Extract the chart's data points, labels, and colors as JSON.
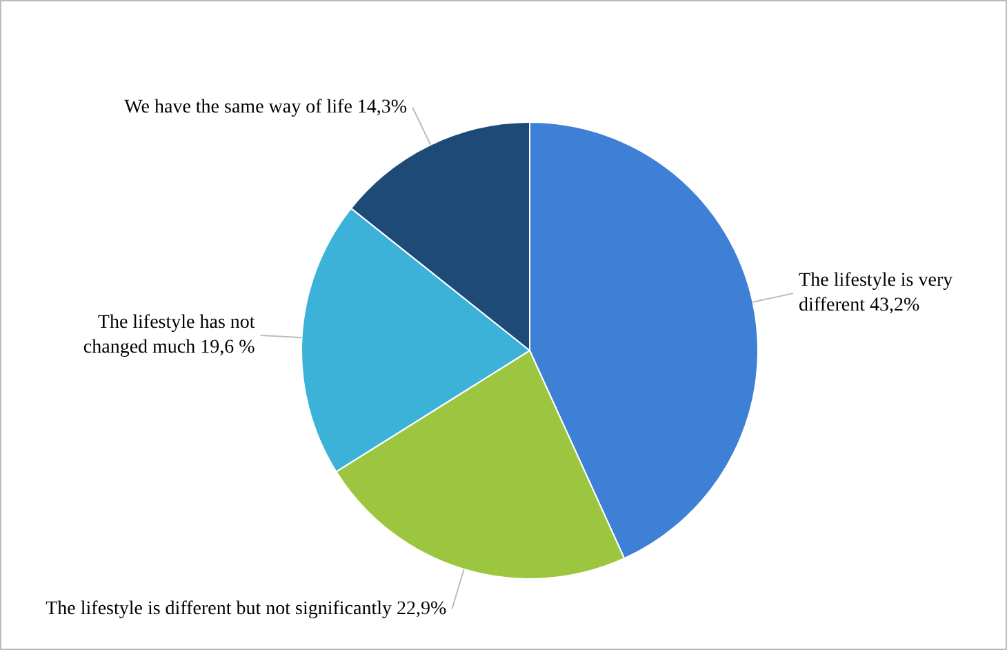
{
  "chart_data": {
    "type": "pie",
    "categories": [
      "The lifestyle is very different",
      "The lifestyle is different but not significantly",
      "The lifestyle has not changed much",
      "We have the same way of life"
    ],
    "values": [
      43.2,
      22.9,
      19.6,
      14.3
    ],
    "value_labels": [
      "43,2%",
      "22,9%",
      "19,6 %",
      "14,3%"
    ],
    "colors": [
      "#3d80d6",
      "#9cc63f",
      "#3cb2d9",
      "#1e4a78"
    ],
    "legend": false
  }
}
